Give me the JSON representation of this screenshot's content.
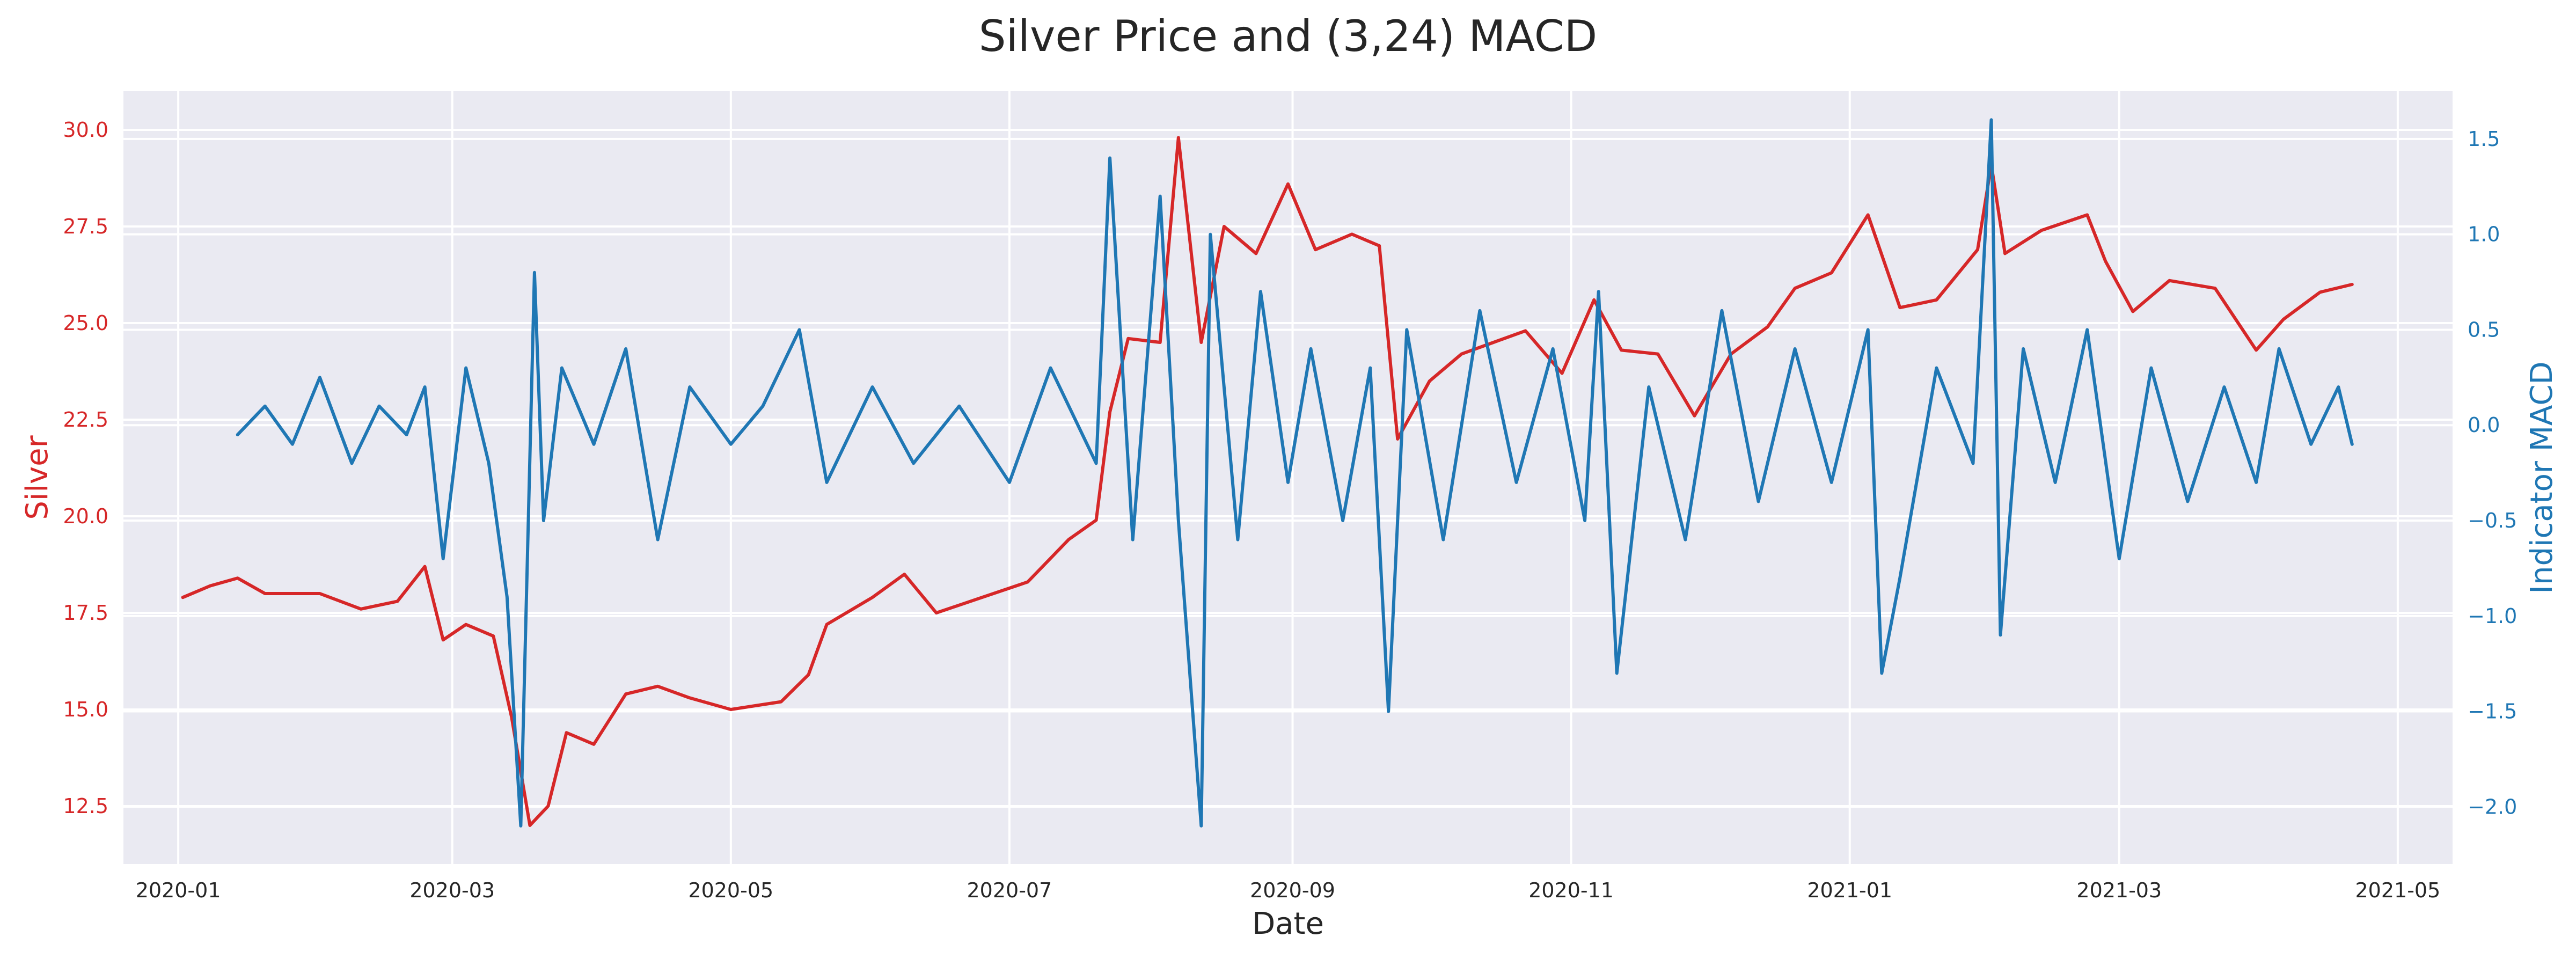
{
  "chart_data": {
    "type": "line",
    "title": "Silver Price and (3,24) MACD",
    "xlabel": "Date",
    "ylabel_left": "Silver",
    "ylabel_right": "Indicator MACD",
    "style": "seaborn darkgrid",
    "grid": true,
    "colors": {
      "left_axis": "#d62728",
      "right_axis": "#1f77b4",
      "background": "#eaeaf2",
      "grid": "#ffffff"
    },
    "x_ticks": [
      "2020-01",
      "2020-03",
      "2020-05",
      "2020-07",
      "2020-09",
      "2020-11",
      "2021-01",
      "2021-03",
      "2021-05"
    ],
    "x_range": [
      "2019-12-20",
      "2021-05-13"
    ],
    "ylim_left": [
      11.0,
      31.0
    ],
    "ylim_right": [
      -2.3,
      1.75
    ],
    "y_ticks_left": [
      "12.5",
      "15.0",
      "17.5",
      "20.0",
      "22.5",
      "25.0",
      "27.5",
      "30.0"
    ],
    "y_ticks_right": [
      "−2.0",
      "−1.5",
      "−1.0",
      "−0.5",
      "0.0",
      "0.5",
      "1.0",
      "1.5"
    ],
    "series": [
      {
        "name": "Silver",
        "axis": "left",
        "color": "#d62728",
        "points": [
          [
            "2020-01-02",
            17.9
          ],
          [
            "2020-01-08",
            18.2
          ],
          [
            "2020-01-14",
            18.4
          ],
          [
            "2020-01-20",
            18.0
          ],
          [
            "2020-02-01",
            18.0
          ],
          [
            "2020-02-10",
            17.6
          ],
          [
            "2020-02-18",
            17.8
          ],
          [
            "2020-02-24",
            18.7
          ],
          [
            "2020-02-28",
            16.8
          ],
          [
            "2020-03-04",
            17.2
          ],
          [
            "2020-03-10",
            16.9
          ],
          [
            "2020-03-14",
            14.8
          ],
          [
            "2020-03-18",
            12.0
          ],
          [
            "2020-03-22",
            12.5
          ],
          [
            "2020-03-26",
            14.4
          ],
          [
            "2020-04-01",
            14.1
          ],
          [
            "2020-04-08",
            15.4
          ],
          [
            "2020-04-15",
            15.6
          ],
          [
            "2020-04-22",
            15.3
          ],
          [
            "2020-05-01",
            15.0
          ],
          [
            "2020-05-12",
            15.2
          ],
          [
            "2020-05-18",
            15.9
          ],
          [
            "2020-05-22",
            17.2
          ],
          [
            "2020-06-01",
            17.9
          ],
          [
            "2020-06-08",
            18.5
          ],
          [
            "2020-06-15",
            17.5
          ],
          [
            "2020-06-25",
            17.9
          ],
          [
            "2020-07-05",
            18.3
          ],
          [
            "2020-07-14",
            19.4
          ],
          [
            "2020-07-20",
            19.9
          ],
          [
            "2020-07-23",
            22.7
          ],
          [
            "2020-07-27",
            24.6
          ],
          [
            "2020-08-03",
            24.5
          ],
          [
            "2020-08-07",
            29.8
          ],
          [
            "2020-08-12",
            24.5
          ],
          [
            "2020-08-17",
            27.5
          ],
          [
            "2020-08-24",
            26.8
          ],
          [
            "2020-08-31",
            28.6
          ],
          [
            "2020-09-06",
            26.9
          ],
          [
            "2020-09-14",
            27.3
          ],
          [
            "2020-09-20",
            27.0
          ],
          [
            "2020-09-24",
            22.0
          ],
          [
            "2020-10-01",
            23.5
          ],
          [
            "2020-10-08",
            24.2
          ],
          [
            "2020-10-15",
            24.5
          ],
          [
            "2020-10-22",
            24.8
          ],
          [
            "2020-10-30",
            23.7
          ],
          [
            "2020-11-06",
            25.6
          ],
          [
            "2020-11-12",
            24.3
          ],
          [
            "2020-11-20",
            24.2
          ],
          [
            "2020-11-28",
            22.6
          ],
          [
            "2020-12-06",
            24.2
          ],
          [
            "2020-12-14",
            24.9
          ],
          [
            "2020-12-20",
            25.9
          ],
          [
            "2020-12-28",
            26.3
          ],
          [
            "2021-01-05",
            27.8
          ],
          [
            "2021-01-12",
            25.4
          ],
          [
            "2021-01-20",
            25.6
          ],
          [
            "2021-01-29",
            26.9
          ],
          [
            "2021-02-01",
            29.1
          ],
          [
            "2021-02-04",
            26.8
          ],
          [
            "2021-02-12",
            27.4
          ],
          [
            "2021-02-22",
            27.8
          ],
          [
            "2021-02-26",
            26.6
          ],
          [
            "2021-03-04",
            25.3
          ],
          [
            "2021-03-12",
            26.1
          ],
          [
            "2021-03-22",
            25.9
          ],
          [
            "2021-03-31",
            24.3
          ],
          [
            "2021-04-06",
            25.1
          ],
          [
            "2021-04-14",
            25.8
          ],
          [
            "2021-04-21",
            26.0
          ]
        ]
      },
      {
        "name": "Indicator MACD",
        "axis": "right",
        "color": "#1f77b4",
        "points": [
          [
            "2020-01-14",
            -0.05
          ],
          [
            "2020-01-20",
            0.1
          ],
          [
            "2020-01-26",
            -0.1
          ],
          [
            "2020-02-01",
            0.25
          ],
          [
            "2020-02-08",
            -0.2
          ],
          [
            "2020-02-14",
            0.1
          ],
          [
            "2020-02-20",
            -0.05
          ],
          [
            "2020-02-24",
            0.2
          ],
          [
            "2020-02-28",
            -0.7
          ],
          [
            "2020-03-04",
            0.3
          ],
          [
            "2020-03-09",
            -0.2
          ],
          [
            "2020-03-13",
            -0.9
          ],
          [
            "2020-03-16",
            -2.1
          ],
          [
            "2020-03-19",
            0.8
          ],
          [
            "2020-03-21",
            -0.5
          ],
          [
            "2020-03-25",
            0.3
          ],
          [
            "2020-04-01",
            -0.1
          ],
          [
            "2020-04-08",
            0.4
          ],
          [
            "2020-04-15",
            -0.6
          ],
          [
            "2020-04-22",
            0.2
          ],
          [
            "2020-05-01",
            -0.1
          ],
          [
            "2020-05-08",
            0.1
          ],
          [
            "2020-05-16",
            0.5
          ],
          [
            "2020-05-22",
            -0.3
          ],
          [
            "2020-06-01",
            0.2
          ],
          [
            "2020-06-10",
            -0.2
          ],
          [
            "2020-06-20",
            0.1
          ],
          [
            "2020-07-01",
            -0.3
          ],
          [
            "2020-07-10",
            0.3
          ],
          [
            "2020-07-20",
            -0.2
          ],
          [
            "2020-07-23",
            1.4
          ],
          [
            "2020-07-28",
            -0.6
          ],
          [
            "2020-08-03",
            1.2
          ],
          [
            "2020-08-07",
            -0.5
          ],
          [
            "2020-08-12",
            -2.1
          ],
          [
            "2020-08-14",
            1.0
          ],
          [
            "2020-08-20",
            -0.6
          ],
          [
            "2020-08-25",
            0.7
          ],
          [
            "2020-08-31",
            -0.3
          ],
          [
            "2020-09-05",
            0.4
          ],
          [
            "2020-09-12",
            -0.5
          ],
          [
            "2020-09-18",
            0.3
          ],
          [
            "2020-09-22",
            -1.5
          ],
          [
            "2020-09-26",
            0.5
          ],
          [
            "2020-10-04",
            -0.6
          ],
          [
            "2020-10-12",
            0.6
          ],
          [
            "2020-10-20",
            -0.3
          ],
          [
            "2020-10-28",
            0.4
          ],
          [
            "2020-11-04",
            -0.5
          ],
          [
            "2020-11-07",
            0.7
          ],
          [
            "2020-11-11",
            -1.3
          ],
          [
            "2020-11-18",
            0.2
          ],
          [
            "2020-11-26",
            -0.6
          ],
          [
            "2020-12-04",
            0.6
          ],
          [
            "2020-12-12",
            -0.4
          ],
          [
            "2020-12-20",
            0.4
          ],
          [
            "2020-12-28",
            -0.3
          ],
          [
            "2021-01-05",
            0.5
          ],
          [
            "2021-01-08",
            -1.3
          ],
          [
            "2021-01-12",
            -0.8
          ],
          [
            "2021-01-20",
            0.3
          ],
          [
            "2021-01-28",
            -0.2
          ],
          [
            "2021-02-01",
            1.6
          ],
          [
            "2021-02-03",
            -1.1
          ],
          [
            "2021-02-08",
            0.4
          ],
          [
            "2021-02-15",
            -0.3
          ],
          [
            "2021-02-22",
            0.5
          ],
          [
            "2021-03-01",
            -0.7
          ],
          [
            "2021-03-08",
            0.3
          ],
          [
            "2021-03-16",
            -0.4
          ],
          [
            "2021-03-24",
            0.2
          ],
          [
            "2021-03-31",
            -0.3
          ],
          [
            "2021-04-05",
            0.4
          ],
          [
            "2021-04-12",
            -0.1
          ],
          [
            "2021-04-18",
            0.2
          ],
          [
            "2021-04-21",
            -0.1
          ]
        ]
      }
    ]
  }
}
